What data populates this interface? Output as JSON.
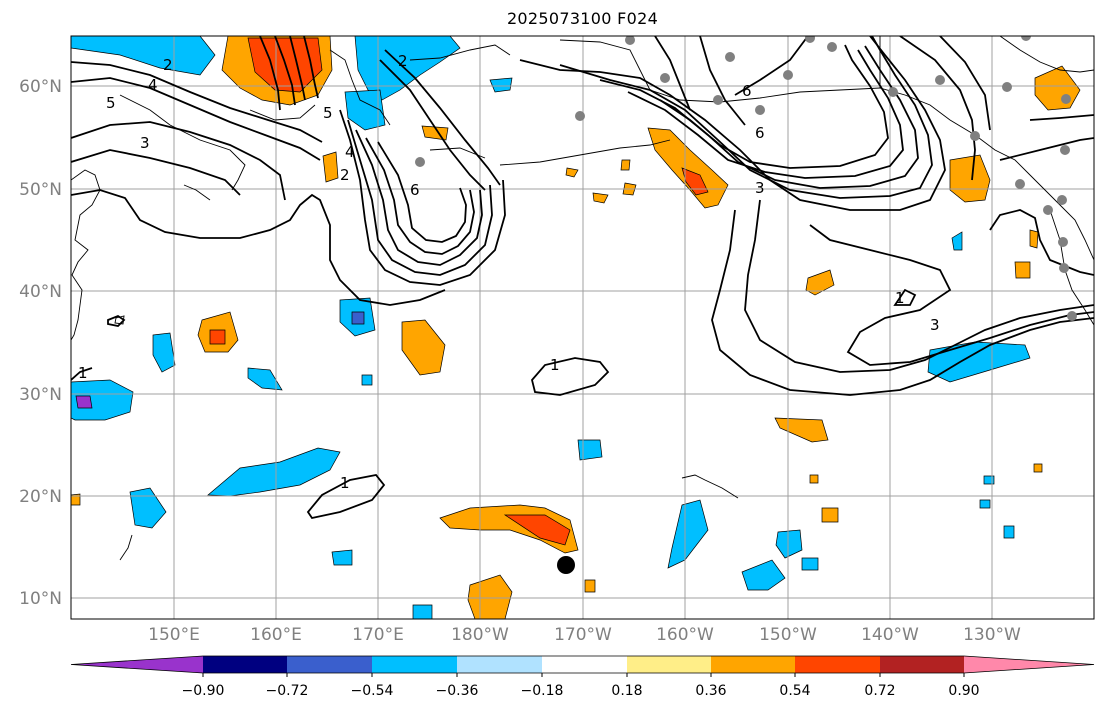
{
  "title": "2025073100 F024",
  "lat_labels": [
    "60°N",
    "50°N",
    "40°N",
    "30°N",
    "20°N",
    "10°N"
  ],
  "lon_labels": [
    "150°E",
    "160°E",
    "170°E",
    "180°W",
    "170°W",
    "160°W",
    "150°W",
    "140°W",
    "130°W"
  ],
  "colorbar": {
    "labels": [
      "−0.90",
      "−0.72",
      "−0.54",
      "−0.36",
      "−0.18",
      "0.18",
      "0.36",
      "0.54",
      "0.72",
      "0.90"
    ],
    "colors": [
      "#9933cc",
      "#000080",
      "#3a5fcd",
      "#00bfff",
      "#b0e2ff",
      "#ffffff",
      "#ffee88",
      "#ffa500",
      "#ff4500",
      "#b22222",
      "#ff88aa"
    ]
  },
  "contour_labels": [
    "1",
    "1",
    "1",
    "1",
    "2",
    "2",
    "2",
    "3",
    "3",
    "3",
    "4",
    "4",
    "5",
    "5",
    "6",
    "6",
    "6"
  ],
  "colors": {
    "grid": "#a0a0a0",
    "coast": "#000000",
    "contour": "#000000",
    "station": "#808080",
    "marker": "#000000"
  }
}
